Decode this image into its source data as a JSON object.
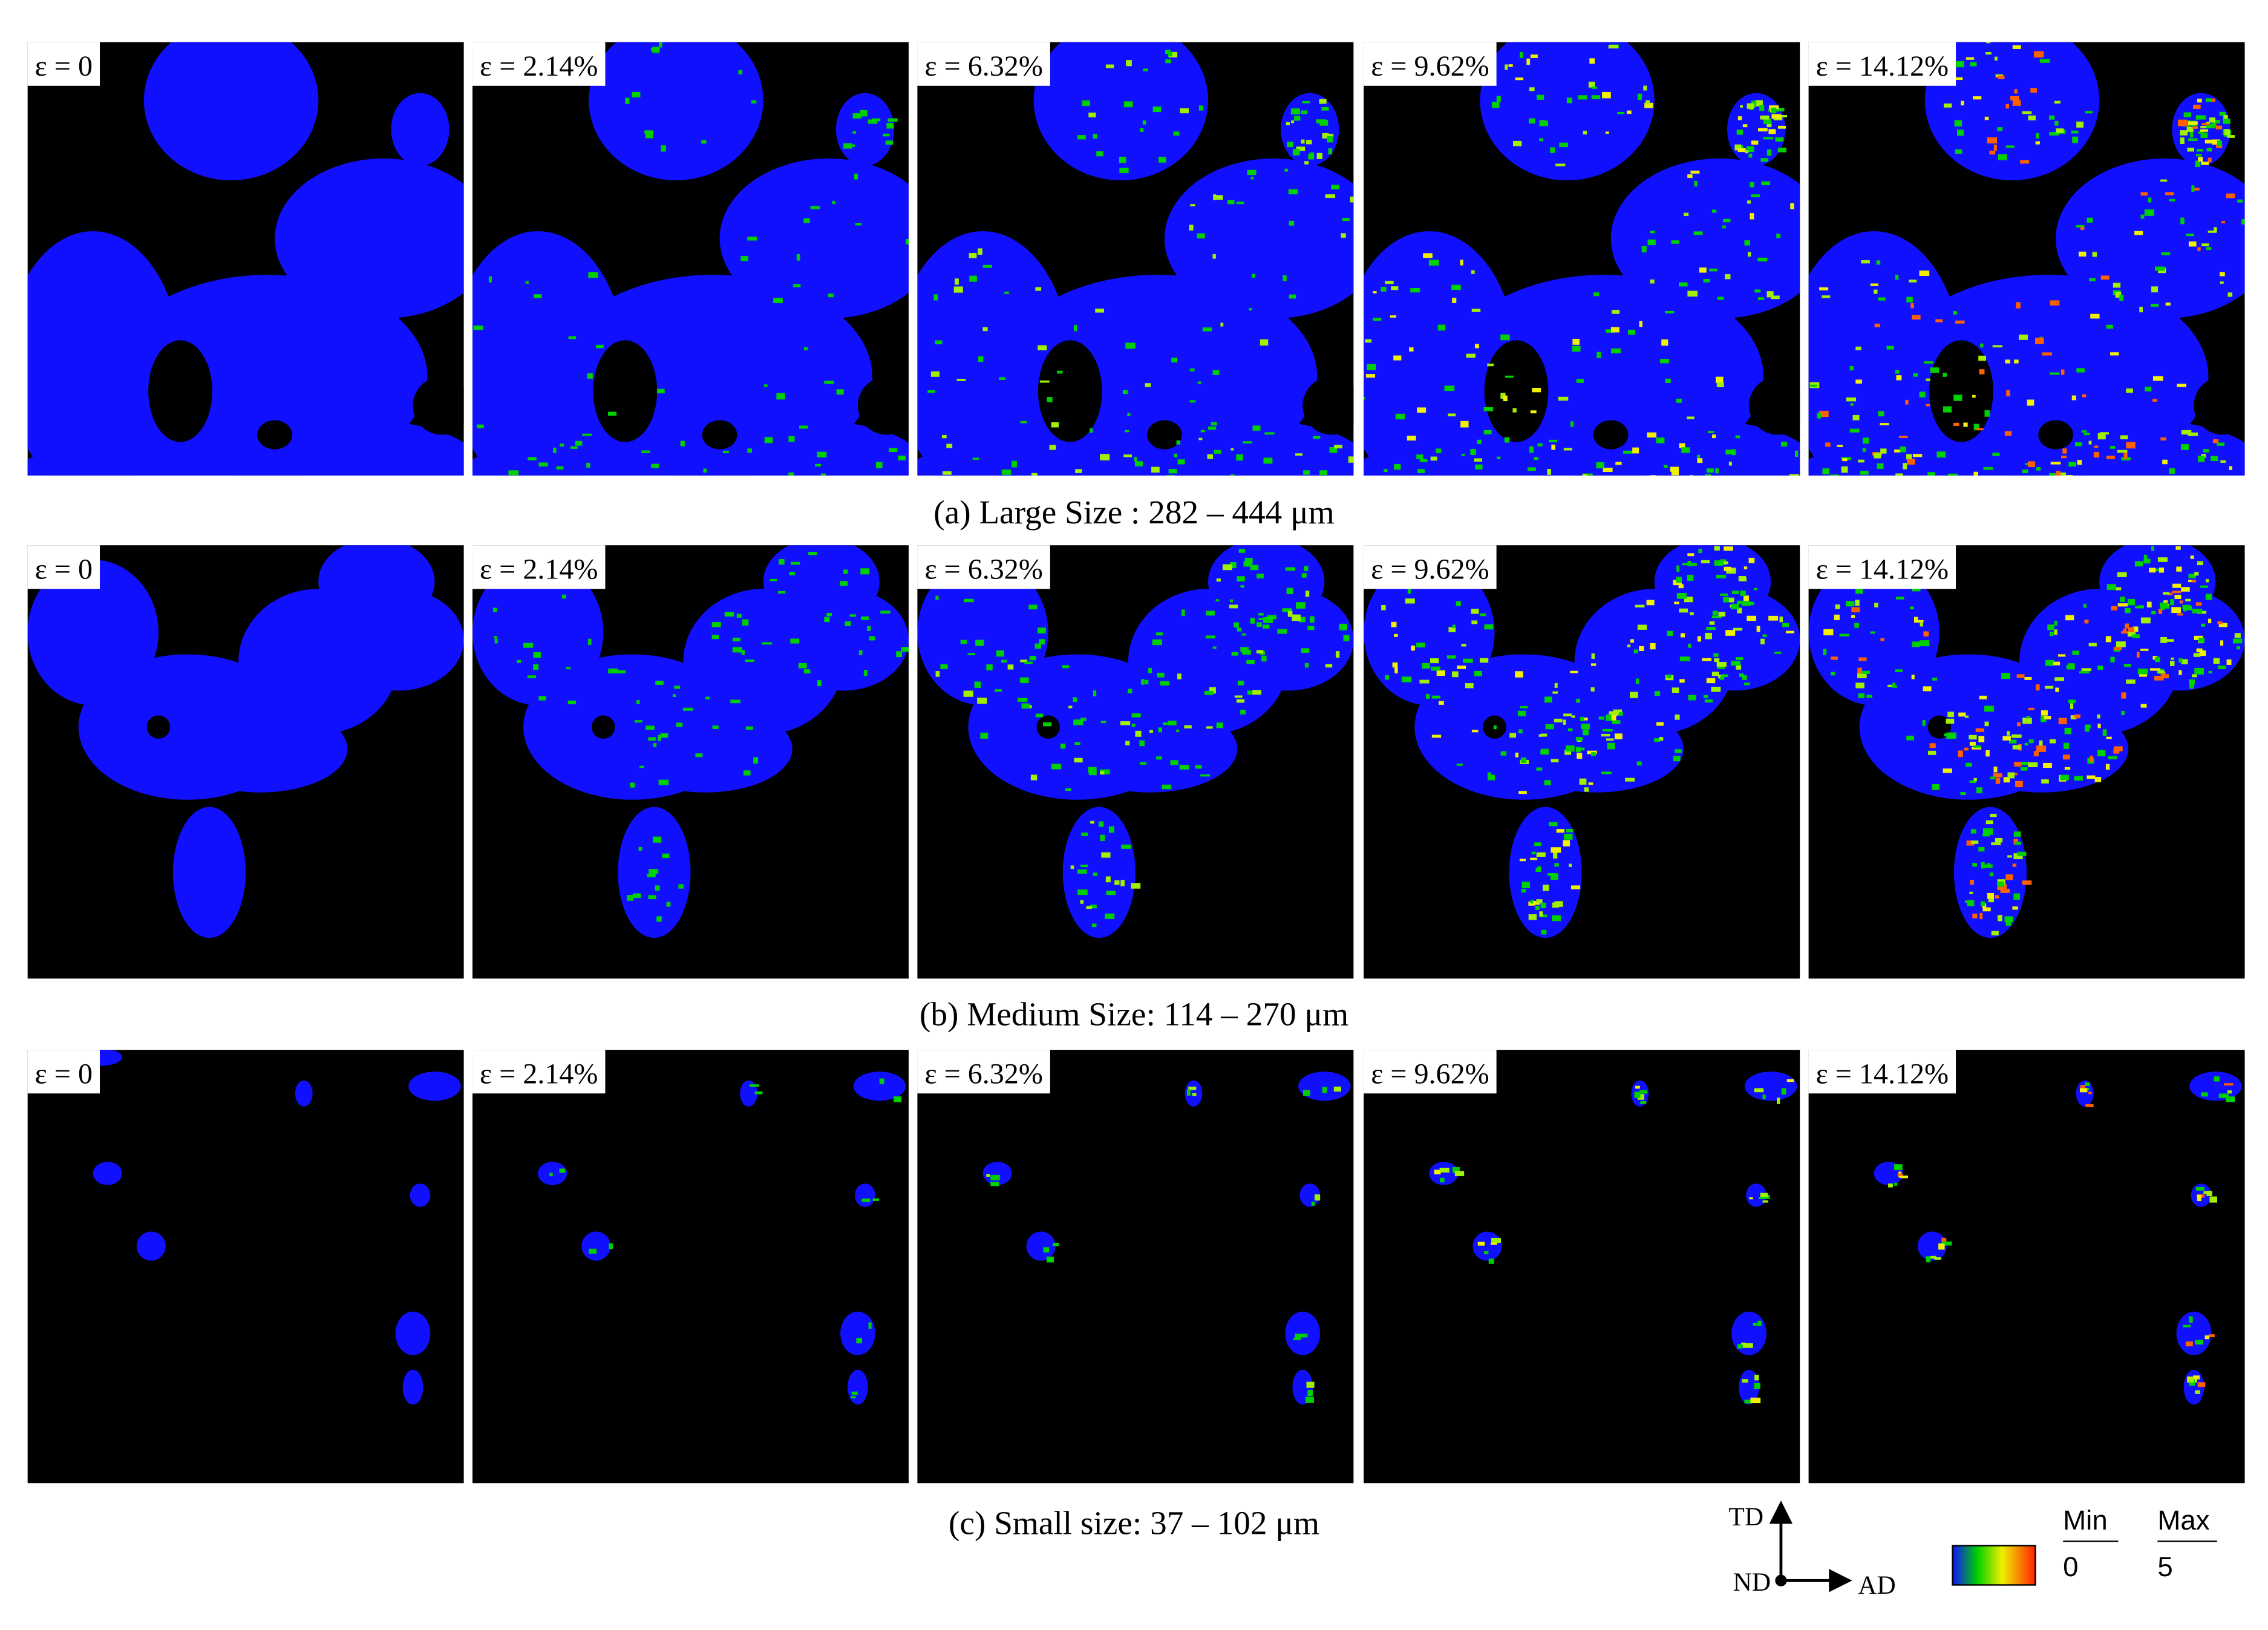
{
  "rows": [
    {
      "caption": "(a) Large Size : 282 – 444 μm",
      "panels": [
        "ε = 0",
        "ε = 2.14%",
        "ε = 6.32%",
        "ε = 9.62%",
        "ε = 14.12%"
      ]
    },
    {
      "caption": "(b) Medium Size: 114 – 270 μm",
      "panels": [
        "ε = 0",
        "ε = 2.14%",
        "ε = 6.32%",
        "ε = 9.62%",
        "ε = 14.12%"
      ]
    },
    {
      "caption": "(c) Small size: 37 – 102 μm",
      "panels": [
        "ε = 0",
        "ε = 2.14%",
        "ε = 6.32%",
        "ε = 9.62%",
        "ε = 14.12%"
      ]
    }
  ],
  "legend": {
    "axes": {
      "up": "TD",
      "origin": "ND",
      "right": "AD"
    },
    "colorbar": {
      "min_label": "Min",
      "max_label": "Max",
      "min": "0",
      "max": "5"
    }
  }
}
